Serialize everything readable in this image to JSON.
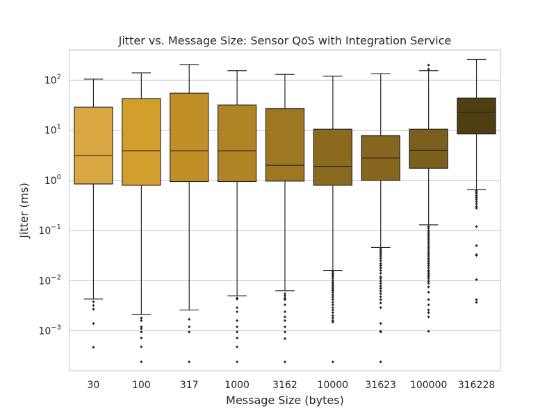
{
  "chart_data": {
    "type": "box",
    "title": "Jitter vs. Message Size: Sensor QoS with Integration Service",
    "xlabel": "Message Size (bytes)",
    "ylabel": "Jitter (ms)",
    "yscale": "log",
    "ylim": [
      0.00016,
      400
    ],
    "yticks": [
      {
        "value": 0.001,
        "base": "10",
        "exp": "−3"
      },
      {
        "value": 0.01,
        "base": "10",
        "exp": "−2"
      },
      {
        "value": 0.1,
        "base": "10",
        "exp": "−1"
      },
      {
        "value": 1,
        "base": "10",
        "exp": "0"
      },
      {
        "value": 10,
        "base": "10",
        "exp": "1"
      },
      {
        "value": 100,
        "base": "10",
        "exp": "2"
      }
    ],
    "grid": true,
    "categories": [
      "30",
      "100",
      "317",
      "1000",
      "3162",
      "10000",
      "31623",
      "100000",
      "316228"
    ],
    "boxes": [
      {
        "category": "30",
        "color": "#d8a842",
        "whisker_low": 0.0043,
        "q1": 0.85,
        "median": 3.1,
        "q3": 29,
        "whisker_high": 105,
        "outliers": [
          0.0038,
          0.0032,
          0.0027,
          0.0014,
          0.00047
        ]
      },
      {
        "category": "100",
        "color": "#d29f2c",
        "whisker_low": 0.0021,
        "q1": 0.8,
        "median": 3.9,
        "q3": 43,
        "whisker_high": 140,
        "outliers": [
          0.0018,
          0.0016,
          0.0012,
          0.0011,
          0.00095,
          0.00072,
          0.00048,
          0.00024
        ]
      },
      {
        "category": "317",
        "color": "#c18f28",
        "whisker_low": 0.0026,
        "q1": 0.95,
        "median": 3.9,
        "q3": 55,
        "whisker_high": 205,
        "outliers": [
          0.0017,
          0.0012,
          0.00095,
          0.00024
        ]
      },
      {
        "category": "1000",
        "color": "#b08425",
        "whisker_low": 0.005,
        "q1": 0.95,
        "median": 3.9,
        "q3": 32,
        "whisker_high": 155,
        "outliers": [
          0.0045,
          0.0043,
          0.0029,
          0.0024,
          0.0016,
          0.0012,
          0.00095,
          0.00072,
          0.00048,
          0.00024
        ]
      },
      {
        "category": "3162",
        "color": "#9f7722",
        "whisker_low": 0.0063,
        "q1": 0.97,
        "median": 2.0,
        "q3": 27,
        "whisker_high": 130,
        "outliers": [
          0.0055,
          0.005,
          0.0045,
          0.0042,
          0.0033,
          0.0024,
          0.0019,
          0.0016,
          0.0012,
          0.00095,
          0.0007,
          0.00024
        ]
      },
      {
        "category": "10000",
        "color": "#8b6a20",
        "whisker_low": 0.016,
        "q1": 0.8,
        "median": 1.9,
        "q3": 10.5,
        "whisker_high": 120,
        "outliers": [
          0.015,
          0.014,
          0.013,
          0.012,
          0.011,
          0.01,
          0.0093,
          0.0086,
          0.008,
          0.0074,
          0.0069,
          0.0064,
          0.0058,
          0.0052,
          0.0047,
          0.0042,
          0.0037,
          0.0033,
          0.0029,
          0.0026,
          0.0023,
          0.002,
          0.0018,
          0.0016,
          0.0015,
          0.00024
        ]
      },
      {
        "category": "31623",
        "color": "#86651e",
        "whisker_low": 0.046,
        "q1": 1.0,
        "median": 2.8,
        "q3": 7.8,
        "whisker_high": 135,
        "outliers": [
          0.043,
          0.04,
          0.037,
          0.034,
          0.031,
          0.028,
          0.025,
          0.022,
          0.02,
          0.018,
          0.016,
          0.014,
          0.012,
          0.011,
          0.0098,
          0.0088,
          0.0078,
          0.007,
          0.0062,
          0.0055,
          0.0048,
          0.0042,
          0.0036,
          0.0029,
          0.0014,
          0.00098,
          0.00095,
          0.00024
        ]
      },
      {
        "category": "100000",
        "color": "#7a5f1d",
        "whisker_low": 0.13,
        "q1": 1.75,
        "median": 4.0,
        "q3": 10.5,
        "whisker_high": 155,
        "outliers": [
          0.12,
          0.11,
          0.1,
          0.093,
          0.085,
          0.078,
          0.071,
          0.065,
          0.059,
          0.054,
          0.049,
          0.045,
          0.041,
          0.037,
          0.034,
          0.031,
          0.028,
          0.026,
          0.024,
          0.022,
          0.02,
          0.018,
          0.016,
          0.015,
          0.014,
          0.013,
          0.012,
          0.011,
          0.0098,
          0.0089,
          0.0075,
          0.0059,
          0.0042,
          0.0033,
          0.0026,
          0.0023,
          0.0019,
          0.00098,
          165,
          200
        ]
      },
      {
        "category": "316228",
        "color": "#4f3e12",
        "whisker_low": 0.65,
        "q1": 8.5,
        "median": 23,
        "q3": 44,
        "whisker_high": 260,
        "outliers": [
          0.62,
          0.58,
          0.55,
          0.5,
          0.46,
          0.42,
          0.38,
          0.34,
          0.3,
          0.28,
          0.12,
          0.05,
          0.033,
          0.032,
          0.0105,
          0.0042,
          0.0037
        ]
      }
    ]
  }
}
